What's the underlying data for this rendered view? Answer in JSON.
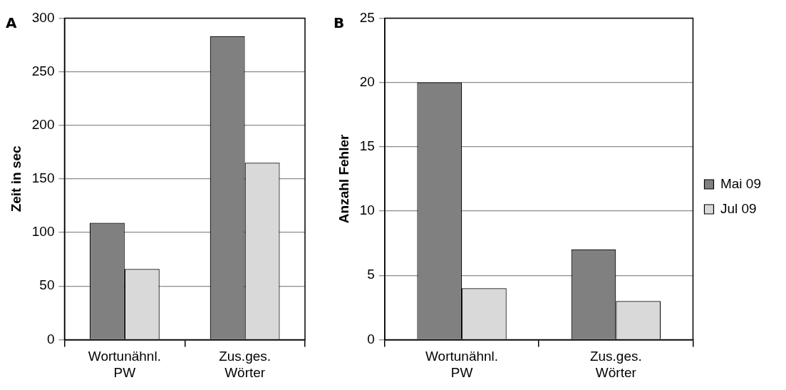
{
  "chart_data": [
    {
      "type": "bar",
      "title": "A",
      "ylabel": "Zeit in sec",
      "categories": [
        "Wortunähnl. PW",
        "Zus.ges. Wörter"
      ],
      "series": [
        {
          "color": "#808080",
          "values": [
            109,
            283
          ]
        },
        {
          "color": "#d9d9d9",
          "values": [
            66,
            165
          ]
        }
      ],
      "ylim": [
        0,
        300
      ],
      "yticks": [
        0,
        50,
        100,
        150,
        200,
        250,
        300
      ],
      "grid": "y",
      "legend": false
    },
    {
      "type": "bar",
      "title": "B",
      "ylabel": "Anzahl Fehler",
      "categories": [
        "Wortunähnl. PW",
        "Zus.ges. Wörter"
      ],
      "series": [
        {
          "name": "Mai 09",
          "color": "#808080",
          "values": [
            20,
            7
          ]
        },
        {
          "name": "Jul 09",
          "color": "#d9d9d9",
          "values": [
            4,
            3
          ]
        }
      ],
      "ylim": [
        0,
        25
      ],
      "yticks": [
        0,
        5,
        10,
        15,
        20,
        25
      ],
      "grid": "y",
      "legend": "right"
    }
  ]
}
